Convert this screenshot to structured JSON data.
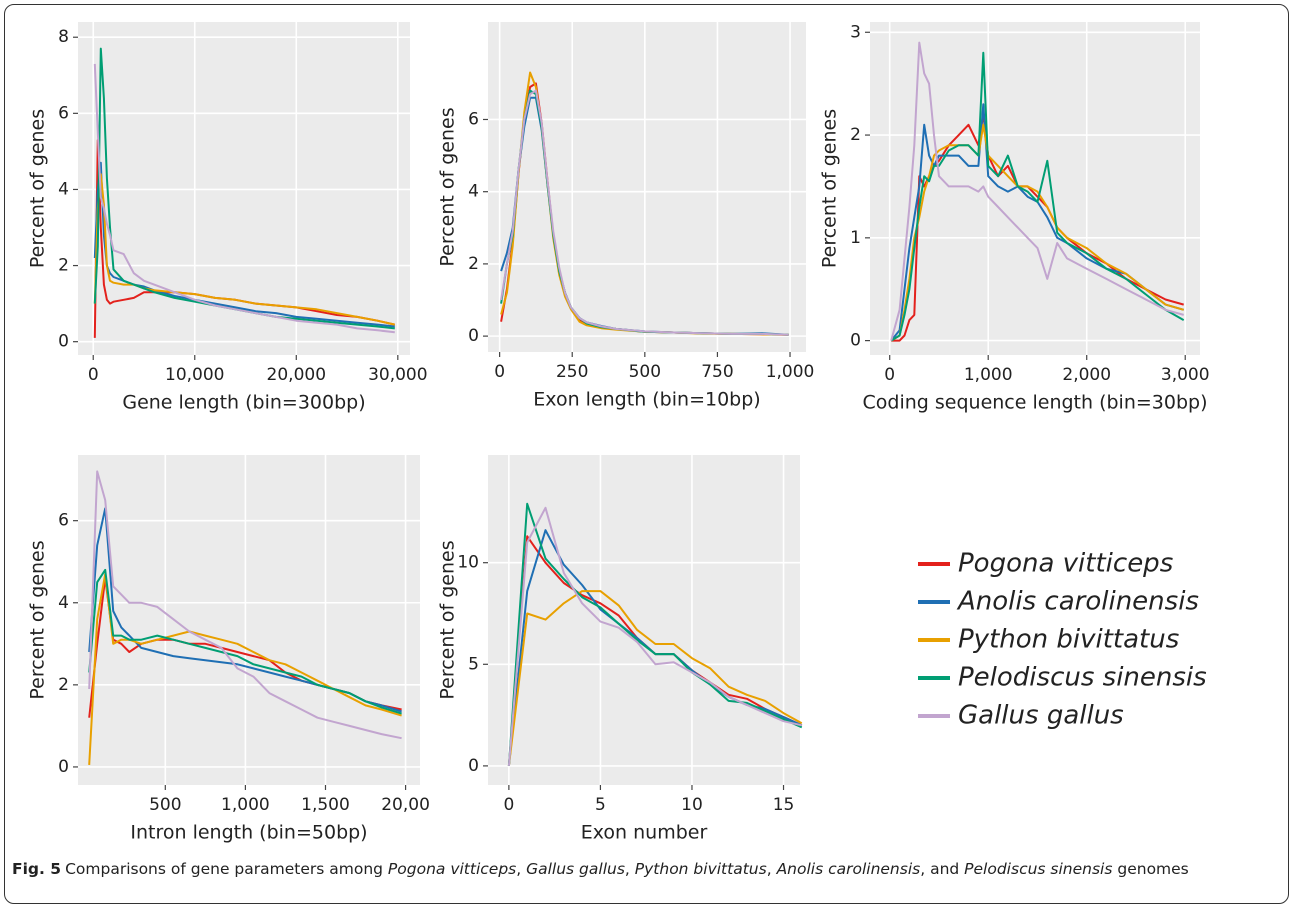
{
  "chart_data": [
    {
      "type": "line",
      "x_label": "Gene length (bin=300bp)",
      "y_label": "Percent of genes",
      "x": [
        150,
        450,
        750,
        1050,
        1350,
        1650,
        2000,
        3000,
        4000,
        5000,
        6000,
        8000,
        10000,
        12000,
        14000,
        16000,
        18000,
        20000,
        22000,
        24000,
        26000,
        28000,
        29700
      ],
      "xlim": [
        -1500,
        31200
      ],
      "ylim": [
        -0.35,
        8.4
      ],
      "xticks": [
        0,
        {
          "value": 10000,
          "label": "10,000"
        },
        {
          "value": 20000,
          "label": "20,000"
        },
        {
          "value": 30000,
          "label": "30,000"
        }
      ],
      "yticks": [
        0,
        2,
        4,
        6,
        8
      ],
      "grid": true,
      "series": [
        {
          "name": "Pogona vitticeps",
          "color": "#e3211c",
          "values": [
            0.1,
            5.3,
            3.0,
            1.5,
            1.1,
            1.0,
            1.05,
            1.1,
            1.15,
            1.3,
            1.3,
            1.3,
            1.25,
            1.15,
            1.1,
            1.0,
            0.95,
            0.9,
            0.8,
            0.7,
            0.65,
            0.55,
            0.45
          ]
        },
        {
          "name": "Anolis carolinensis",
          "color": "#1f6fb4",
          "values": [
            2.2,
            4.0,
            4.7,
            2.8,
            2.0,
            1.8,
            1.7,
            1.6,
            1.5,
            1.45,
            1.35,
            1.2,
            1.1,
            1.0,
            0.9,
            0.8,
            0.75,
            0.65,
            0.6,
            0.55,
            0.5,
            0.45,
            0.4
          ]
        },
        {
          "name": "Python bivittatus",
          "color": "#e8a000",
          "values": [
            1.0,
            3.5,
            4.4,
            3.6,
            2.0,
            1.6,
            1.55,
            1.5,
            1.5,
            1.4,
            1.35,
            1.3,
            1.25,
            1.15,
            1.1,
            1.0,
            0.95,
            0.9,
            0.85,
            0.75,
            0.65,
            0.55,
            0.45
          ]
        },
        {
          "name": "Pelodiscus sinensis",
          "color": "#009e73",
          "values": [
            1.0,
            2.5,
            7.7,
            6.4,
            4.3,
            3.0,
            1.9,
            1.6,
            1.5,
            1.4,
            1.3,
            1.15,
            1.05,
            0.95,
            0.85,
            0.75,
            0.65,
            0.6,
            0.55,
            0.5,
            0.45,
            0.4,
            0.35
          ]
        },
        {
          "name": "Gallus gallus",
          "color": "#c2a5cf",
          "values": [
            7.3,
            5.5,
            3.8,
            3.5,
            3.1,
            2.8,
            2.4,
            2.3,
            1.8,
            1.6,
            1.5,
            1.3,
            1.1,
            0.95,
            0.85,
            0.75,
            0.65,
            0.55,
            0.5,
            0.45,
            0.35,
            0.3,
            0.25
          ]
        }
      ]
    },
    {
      "type": "line",
      "x_label": "Exon length (bin=10bp)",
      "x": [
        5,
        25,
        45,
        65,
        85,
        105,
        125,
        145,
        165,
        185,
        205,
        225,
        245,
        275,
        300,
        350,
        400,
        500,
        600,
        700,
        800,
        900,
        995
      ],
      "xlim": [
        -40,
        1055
      ],
      "ylim": [
        -0.44,
        8.7
      ],
      "xticks": [
        0,
        250,
        500,
        750,
        {
          "value": 1000,
          "label": "1,000"
        }
      ],
      "yticks": [
        0,
        2,
        4,
        6
      ],
      "grid": true,
      "series": [
        {
          "values": [
            0.4,
            1.3,
            2.6,
            4.5,
            6.0,
            6.9,
            7.0,
            5.9,
            4.3,
            2.8,
            1.8,
            1.2,
            0.8,
            0.45,
            0.35,
            0.25,
            0.2,
            0.12,
            0.1,
            0.08,
            0.06,
            0.05,
            0.04
          ]
        },
        {
          "values": [
            1.8,
            2.3,
            3.0,
            4.6,
            5.8,
            6.6,
            6.6,
            5.7,
            4.2,
            2.8,
            1.8,
            1.2,
            0.8,
            0.5,
            0.38,
            0.28,
            0.2,
            0.13,
            0.1,
            0.08,
            0.06,
            0.08,
            0.04
          ]
        },
        {
          "values": [
            0.6,
            1.2,
            2.5,
            4.5,
            6.2,
            7.3,
            6.9,
            5.8,
            4.2,
            2.7,
            1.7,
            1.1,
            0.75,
            0.4,
            0.3,
            0.22,
            0.18,
            0.12,
            0.1,
            0.07,
            0.06,
            0.05,
            0.04
          ]
        },
        {
          "values": [
            0.9,
            2.0,
            2.8,
            4.6,
            6.0,
            6.8,
            6.7,
            5.8,
            4.2,
            2.8,
            1.8,
            1.2,
            0.8,
            0.5,
            0.35,
            0.25,
            0.2,
            0.12,
            0.1,
            0.08,
            0.06,
            0.06,
            0.04
          ]
        },
        {
          "values": [
            1.0,
            2.0,
            2.9,
            4.6,
            6.0,
            6.7,
            6.8,
            5.9,
            4.3,
            2.9,
            1.9,
            1.2,
            0.8,
            0.5,
            0.38,
            0.27,
            0.2,
            0.13,
            0.1,
            0.08,
            0.06,
            0.06,
            0.04
          ]
        }
      ]
    },
    {
      "type": "line",
      "x_label": "Coding sequence length (bin=30bp)",
      "x": [
        15,
        100,
        150,
        200,
        250,
        300,
        350,
        400,
        450,
        500,
        600,
        700,
        800,
        900,
        950,
        1000,
        1100,
        1200,
        1300,
        1400,
        1500,
        1600,
        1700,
        1800,
        2000,
        2200,
        2400,
        2600,
        2800,
        2985
      ],
      "xlim": [
        -200,
        3150
      ],
      "ylim": [
        -0.14,
        3.1
      ],
      "xticks": [
        0,
        {
          "value": 1000,
          "label": "1,000"
        },
        {
          "value": 2000,
          "label": "2,000"
        },
        {
          "value": 3000,
          "label": "3,000"
        }
      ],
      "yticks": [
        0,
        1,
        2,
        3
      ],
      "grid": true,
      "series": [
        {
          "values": [
            0,
            0,
            0.05,
            0.2,
            0.25,
            1.6,
            1.5,
            1.6,
            1.7,
            1.75,
            1.9,
            2.0,
            2.1,
            1.9,
            2.2,
            1.8,
            1.6,
            1.7,
            1.5,
            1.5,
            1.4,
            1.3,
            1.1,
            1.0,
            0.85,
            0.75,
            0.6,
            0.5,
            0.4,
            0.35
          ]
        },
        {
          "values": [
            0,
            0.1,
            0.5,
            0.9,
            1.2,
            1.5,
            2.1,
            1.8,
            1.7,
            1.8,
            1.8,
            1.8,
            1.7,
            1.7,
            2.3,
            1.6,
            1.5,
            1.45,
            1.5,
            1.4,
            1.35,
            1.2,
            1.0,
            0.95,
            0.8,
            0.7,
            0.65,
            0.5,
            0.35,
            0.3
          ]
        },
        {
          "values": [
            0,
            0.05,
            0.3,
            0.6,
            1.0,
            1.2,
            1.45,
            1.6,
            1.8,
            1.85,
            1.9,
            1.9,
            1.9,
            1.8,
            2.1,
            1.8,
            1.7,
            1.6,
            1.5,
            1.5,
            1.45,
            1.3,
            1.1,
            1.0,
            0.9,
            0.75,
            0.65,
            0.5,
            0.35,
            0.3
          ]
        },
        {
          "values": [
            0,
            0.05,
            0.25,
            0.5,
            0.9,
            1.3,
            1.6,
            1.55,
            1.7,
            1.7,
            1.85,
            1.9,
            1.9,
            1.8,
            2.8,
            1.7,
            1.6,
            1.8,
            1.5,
            1.45,
            1.35,
            1.75,
            1.05,
            0.95,
            0.85,
            0.7,
            0.6,
            0.45,
            0.3,
            0.2
          ]
        },
        {
          "values": [
            0,
            0.3,
            0.8,
            1.3,
            1.9,
            2.9,
            2.6,
            2.5,
            2.0,
            1.6,
            1.5,
            1.5,
            1.5,
            1.45,
            1.5,
            1.4,
            1.3,
            1.2,
            1.1,
            1.0,
            0.9,
            0.6,
            0.95,
            0.8,
            0.7,
            0.6,
            0.5,
            0.4,
            0.3,
            0.25
          ]
        }
      ]
    },
    {
      "type": "line",
      "x_label": "Intron length (bin=50bp)",
      "x": [
        25,
        75,
        125,
        175,
        225,
        275,
        350,
        450,
        550,
        650,
        750,
        850,
        950,
        1050,
        1150,
        1250,
        1350,
        1450,
        1550,
        1650,
        1750,
        1850,
        1975
      ],
      "xlim": [
        -45,
        2090
      ],
      "ylim": [
        -0.44,
        7.6
      ],
      "xticks": [
        500,
        {
          "value": 1000,
          "label": "1,000"
        },
        {
          "value": 1500,
          "label": "1,500"
        },
        {
          "value": 2000,
          "label": "20,00"
        }
      ],
      "yticks": [
        0,
        2,
        4,
        6
      ],
      "grid": true,
      "series": [
        {
          "values": [
            1.2,
            3.0,
            4.6,
            3.1,
            3.0,
            2.8,
            3.0,
            3.1,
            3.1,
            3.0,
            3.0,
            2.9,
            2.8,
            2.7,
            2.6,
            2.3,
            2.1,
            2.0,
            1.9,
            1.8,
            1.6,
            1.5,
            1.4
          ]
        },
        {
          "values": [
            2.8,
            5.4,
            6.3,
            3.8,
            3.4,
            3.2,
            2.9,
            2.8,
            2.7,
            2.65,
            2.6,
            2.55,
            2.5,
            2.4,
            2.3,
            2.2,
            2.1,
            2.0,
            1.9,
            1.8,
            1.6,
            1.5,
            1.35
          ]
        },
        {
          "values": [
            0.05,
            3.6,
            4.7,
            3.0,
            3.1,
            3.1,
            3.0,
            3.1,
            3.2,
            3.3,
            3.2,
            3.1,
            3.0,
            2.8,
            2.6,
            2.5,
            2.3,
            2.1,
            1.9,
            1.7,
            1.5,
            1.4,
            1.25
          ]
        },
        {
          "values": [
            2.3,
            4.5,
            4.8,
            3.2,
            3.2,
            3.1,
            3.1,
            3.2,
            3.1,
            3.0,
            2.9,
            2.8,
            2.7,
            2.5,
            2.4,
            2.3,
            2.2,
            2.0,
            1.9,
            1.8,
            1.6,
            1.45,
            1.3
          ]
        },
        {
          "values": [
            1.9,
            7.2,
            6.5,
            4.4,
            4.2,
            4.0,
            4.0,
            3.9,
            3.6,
            3.3,
            3.1,
            2.9,
            2.4,
            2.2,
            1.8,
            1.6,
            1.4,
            1.2,
            1.1,
            1.0,
            0.9,
            0.8,
            0.7
          ]
        }
      ]
    },
    {
      "type": "line",
      "x_label": "Exon number",
      "x": [
        0,
        1,
        2,
        3,
        4,
        5,
        6,
        7,
        8,
        9,
        10,
        11,
        12,
        13,
        14,
        15,
        16
      ],
      "xlim": [
        -1.14,
        15.9
      ],
      "ylim": [
        -0.94,
        15.3
      ],
      "xticks": [
        0,
        5,
        10,
        15
      ],
      "yticks": [
        0,
        5,
        10
      ],
      "grid": true,
      "series": [
        {
          "values": [
            0,
            11.3,
            10.0,
            9.0,
            8.4,
            8.0,
            7.4,
            6.3,
            5.5,
            5.5,
            4.7,
            4.1,
            3.5,
            3.3,
            2.8,
            2.4,
            2.0
          ]
        },
        {
          "values": [
            0,
            8.6,
            11.6,
            9.9,
            8.9,
            7.7,
            7.0,
            6.3,
            5.5,
            5.5,
            4.7,
            4.0,
            3.4,
            3.0,
            2.8,
            2.4,
            2.0
          ]
        },
        {
          "values": [
            0,
            7.5,
            7.2,
            8.0,
            8.6,
            8.6,
            7.9,
            6.7,
            6.0,
            6.0,
            5.3,
            4.8,
            3.9,
            3.5,
            3.2,
            2.6,
            2.1
          ]
        },
        {
          "values": [
            0,
            12.9,
            10.2,
            9.2,
            8.3,
            7.8,
            7.0,
            6.2,
            5.5,
            5.5,
            4.6,
            4.0,
            3.2,
            3.1,
            2.7,
            2.3,
            1.9
          ]
        },
        {
          "values": [
            0,
            11.0,
            12.7,
            9.5,
            8.0,
            7.1,
            6.8,
            6.1,
            5.0,
            5.1,
            4.6,
            4.1,
            3.4,
            3.0,
            2.6,
            2.2,
            2.0
          ]
        }
      ]
    }
  ],
  "caption": {
    "label": "Fig. 5",
    "parts": [
      "Comparisons of gene parameters among ",
      "Pogona vitticeps",
      ", ",
      "Gallus gallus",
      ", ",
      "Python bivittatus",
      ", ",
      "Anolis carolinensis",
      ", and ",
      "Pelodiscus sinensis",
      " genomes"
    ]
  }
}
